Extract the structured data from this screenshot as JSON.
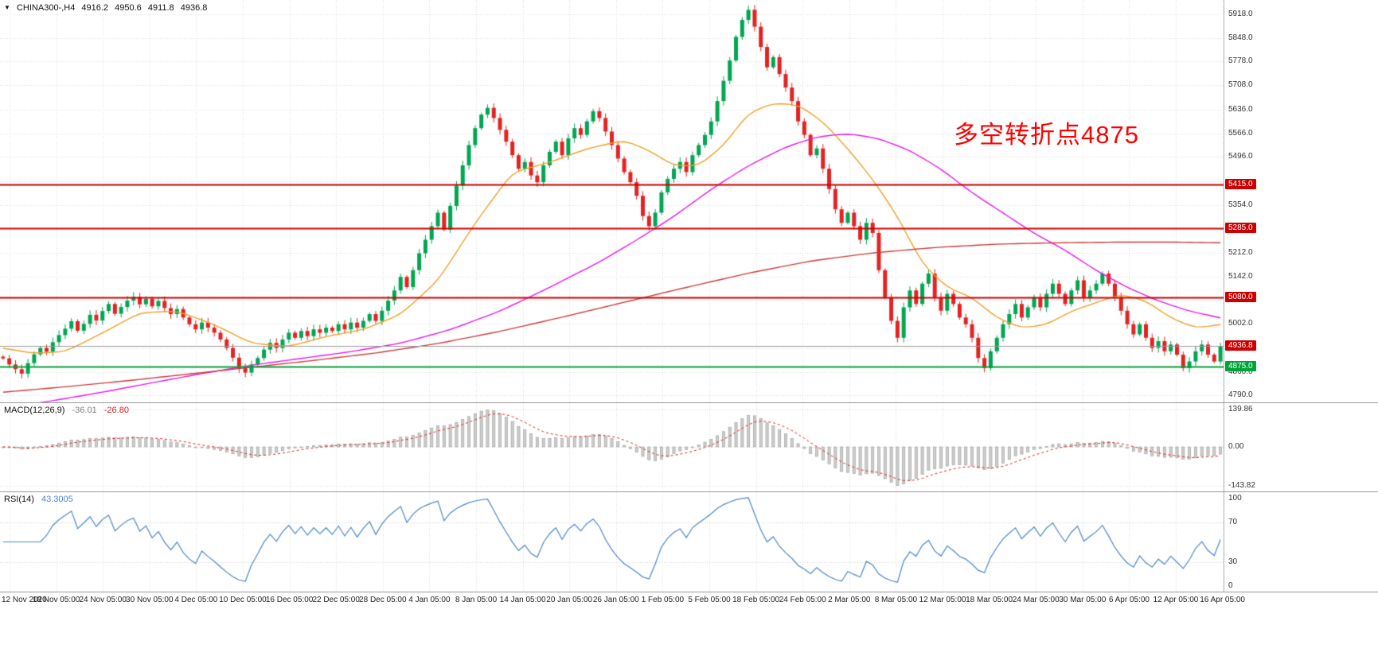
{
  "header": {
    "collapse_icon": "▼",
    "symbol_period": "CHINA300-,H4",
    "open": "4916.2",
    "high": "4950.6",
    "low": "4911.8",
    "close": "4936.8"
  },
  "chart_data": {
    "type": "candlestick",
    "title": "CHINA300- H4 chart with MACD and RSI",
    "ylim": [
      4770,
      5960
    ],
    "first_open": 4905,
    "closes": [
      4900,
      4882,
      4868,
      4855,
      4886,
      4912,
      4931,
      4920,
      4948,
      4969,
      4988,
      5010,
      4982,
      5002,
      5029,
      5012,
      5040,
      5061,
      5032,
      5052,
      5071,
      5082,
      5060,
      5076,
      5054,
      5070,
      5049,
      5031,
      5046,
      5021,
      5001,
      4986,
      5006,
      4991,
      4976,
      4956,
      4931,
      4902,
      4871,
      4858,
      4882,
      4901,
      4926,
      4946,
      4931,
      4956,
      4976,
      4961,
      4981,
      4966,
      4986,
      4976,
      4991,
      4981,
      5001,
      4986,
      5006,
      4991,
      5011,
      5031,
      5011,
      5041,
      5071,
      5101,
      5141,
      5111,
      5161,
      5211,
      5251,
      5291,
      5331,
      5281,
      5351,
      5411,
      5471,
      5531,
      5581,
      5621,
      5641,
      5611,
      5576,
      5541,
      5501,
      5461,
      5481,
      5441,
      5421,
      5471,
      5511,
      5541,
      5501,
      5551,
      5581,
      5561,
      5601,
      5631,
      5611,
      5571,
      5531,
      5491,
      5451,
      5421,
      5381,
      5321,
      5291,
      5331,
      5391,
      5431,
      5461,
      5481,
      5451,
      5501,
      5531,
      5561,
      5601,
      5661,
      5721,
      5781,
      5851,
      5901,
      5931,
      5881,
      5821,
      5761,
      5791,
      5741,
      5701,
      5661,
      5601,
      5561,
      5501,
      5521,
      5461,
      5401,
      5341,
      5301,
      5331,
      5291,
      5251,
      5301,
      5271,
      5161,
      5081,
      5011,
      4961,
      5051,
      5101,
      5061,
      5121,
      5151,
      5081,
      5041,
      5091,
      5061,
      5021,
      5001,
      4961,
      4901,
      4871,
      4921,
      4961,
      5001,
      5031,
      5061,
      5021,
      5051,
      5081,
      5051,
      5091,
      5121,
      5091,
      5061,
      5101,
      5131,
      5081,
      5101,
      5121,
      5151,
      5121,
      5081,
      5041,
      5001,
      4971,
      5001,
      4961,
      4931,
      4951,
      4921,
      4941,
      4911,
      4871,
      4891,
      4921,
      4941,
      4911,
      4891,
      4936.8
    ],
    "time_labels": [
      "12 Nov 2020",
      "18 Nov 05:00",
      "24 Nov 05:00",
      "30 Nov 05:00",
      "4 Dec 05:00",
      "10 Dec 05:00",
      "16 Dec 05:00",
      "22 Dec 05:00",
      "28 Dec 05:00",
      "4 Jan 05:00",
      "8 Jan 05:00",
      "14 Jan 05:00",
      "20 Jan 05:00",
      "26 Jan 05:00",
      "1 Feb 05:00",
      "5 Feb 05:00",
      "18 Feb 05:00",
      "24 Feb 05:00",
      "2 Mar 05:00",
      "8 Mar 05:00",
      "12 Mar 05:00",
      "18 Mar 05:00",
      "24 Mar 05:00",
      "30 Mar 05:00",
      "6 Apr 05:00",
      "12 Apr 05:00",
      "16 Apr 05:00"
    ],
    "price_axis": {
      "gridline_values": [
        5918,
        5848,
        5778,
        5708,
        5636,
        5566,
        5496,
        5424,
        5354,
        5284,
        5212,
        5142,
        5072,
        5002,
        4930,
        4860,
        4790
      ],
      "labeled_values": [
        5918,
        5848,
        5778,
        5708,
        5636,
        5566,
        5496,
        5354,
        5212,
        5142,
        5002,
        4860,
        4790
      ]
    },
    "levels": [
      {
        "value": 5415,
        "label": "5415.0",
        "color": "#cc0000",
        "width": 2
      },
      {
        "value": 5285,
        "label": "5285.0",
        "color": "#cc0000",
        "width": 2
      },
      {
        "value": 5080,
        "label": "5080.0",
        "color": "#cc0000",
        "width": 2
      },
      {
        "value": 4875,
        "label": "4875.0",
        "color": "#00a33a",
        "width": 2
      },
      {
        "value": 4936.8,
        "label": "4936.8",
        "color": "#999999",
        "width": 1,
        "badge_color": "#cc0000",
        "type": "current-price"
      }
    ],
    "moving_averages": [
      {
        "name": "ma-fast-orange",
        "color": "#f0a02a",
        "anchors": [
          [
            0,
            4930
          ],
          [
            5,
            4915
          ],
          [
            10,
            4920
          ],
          [
            16,
            4975
          ],
          [
            22,
            5035
          ],
          [
            28,
            5040
          ],
          [
            34,
            5000
          ],
          [
            40,
            4945
          ],
          [
            46,
            4935
          ],
          [
            52,
            4965
          ],
          [
            58,
            4985
          ],
          [
            64,
            5030
          ],
          [
            70,
            5130
          ],
          [
            76,
            5300
          ],
          [
            82,
            5450
          ],
          [
            88,
            5480
          ],
          [
            94,
            5520
          ],
          [
            100,
            5545
          ],
          [
            104,
            5515
          ],
          [
            108,
            5470
          ],
          [
            112,
            5470
          ],
          [
            116,
            5530
          ],
          [
            120,
            5625
          ],
          [
            124,
            5655
          ],
          [
            128,
            5650
          ],
          [
            132,
            5600
          ],
          [
            136,
            5520
          ],
          [
            140,
            5430
          ],
          [
            144,
            5320
          ],
          [
            148,
            5180
          ],
          [
            152,
            5110
          ],
          [
            156,
            5080
          ],
          [
            160,
            5020
          ],
          [
            164,
            4990
          ],
          [
            168,
            5000
          ],
          [
            172,
            5040
          ],
          [
            176,
            5065
          ],
          [
            180,
            5090
          ],
          [
            184,
            5070
          ],
          [
            188,
            5020
          ],
          [
            192,
            4990
          ],
          [
            196,
            5000
          ]
        ]
      },
      {
        "name": "ma-mid-magenta",
        "color": "#e816e8",
        "anchors": [
          [
            0,
            4752
          ],
          [
            8,
            4775
          ],
          [
            16,
            4800
          ],
          [
            24,
            4828
          ],
          [
            32,
            4855
          ],
          [
            40,
            4880
          ],
          [
            48,
            4900
          ],
          [
            56,
            4920
          ],
          [
            64,
            4945
          ],
          [
            72,
            4985
          ],
          [
            80,
            5040
          ],
          [
            88,
            5110
          ],
          [
            96,
            5185
          ],
          [
            102,
            5250
          ],
          [
            108,
            5320
          ],
          [
            114,
            5400
          ],
          [
            120,
            5470
          ],
          [
            126,
            5525
          ],
          [
            131,
            5555
          ],
          [
            136,
            5565
          ],
          [
            141,
            5550
          ],
          [
            146,
            5515
          ],
          [
            151,
            5460
          ],
          [
            156,
            5390
          ],
          [
            161,
            5330
          ],
          [
            166,
            5270
          ],
          [
            171,
            5220
          ],
          [
            176,
            5160
          ],
          [
            181,
            5110
          ],
          [
            186,
            5070
          ],
          [
            191,
            5040
          ],
          [
            196,
            5020
          ]
        ]
      },
      {
        "name": "ma-slow-red",
        "color": "#cc3b3b",
        "anchors": [
          [
            0,
            4800
          ],
          [
            10,
            4816
          ],
          [
            20,
            4834
          ],
          [
            30,
            4854
          ],
          [
            40,
            4874
          ],
          [
            50,
            4894
          ],
          [
            60,
            4916
          ],
          [
            70,
            4944
          ],
          [
            80,
            4980
          ],
          [
            90,
            5022
          ],
          [
            100,
            5066
          ],
          [
            110,
            5110
          ],
          [
            120,
            5152
          ],
          [
            130,
            5188
          ],
          [
            140,
            5212
          ],
          [
            150,
            5228
          ],
          [
            160,
            5238
          ],
          [
            170,
            5242
          ],
          [
            180,
            5244
          ],
          [
            188,
            5244
          ],
          [
            196,
            5242
          ]
        ]
      }
    ],
    "macd": {
      "label": "MACD(12,26,9)",
      "value_main": "-36.01",
      "value_signal": "-26.80",
      "axis_labels": [
        "139.86",
        "0.00",
        "-143.82"
      ],
      "axis_values": [
        139.86,
        0,
        -143.82
      ],
      "ylim": [
        -165,
        162
      ],
      "hist_color": "#cccccc",
      "hist_border": "#9b9b9b",
      "signal_color": "#e02020"
    },
    "rsi": {
      "label": "RSI(14)",
      "value": "43.3005",
      "axis_labels": [
        "100",
        "70",
        "30",
        "0"
      ],
      "axis_values": [
        100,
        70,
        30,
        0
      ],
      "level_lines": [
        70,
        30
      ],
      "ylim": [
        0,
        100
      ],
      "line_color": "#4a86c8"
    },
    "annotation": {
      "text": "多空转折点4875",
      "color": "#ff0000"
    },
    "candle_up_color": "#00a651",
    "candle_down_color": "#e32222",
    "grid_color": "#dcdcdc"
  }
}
